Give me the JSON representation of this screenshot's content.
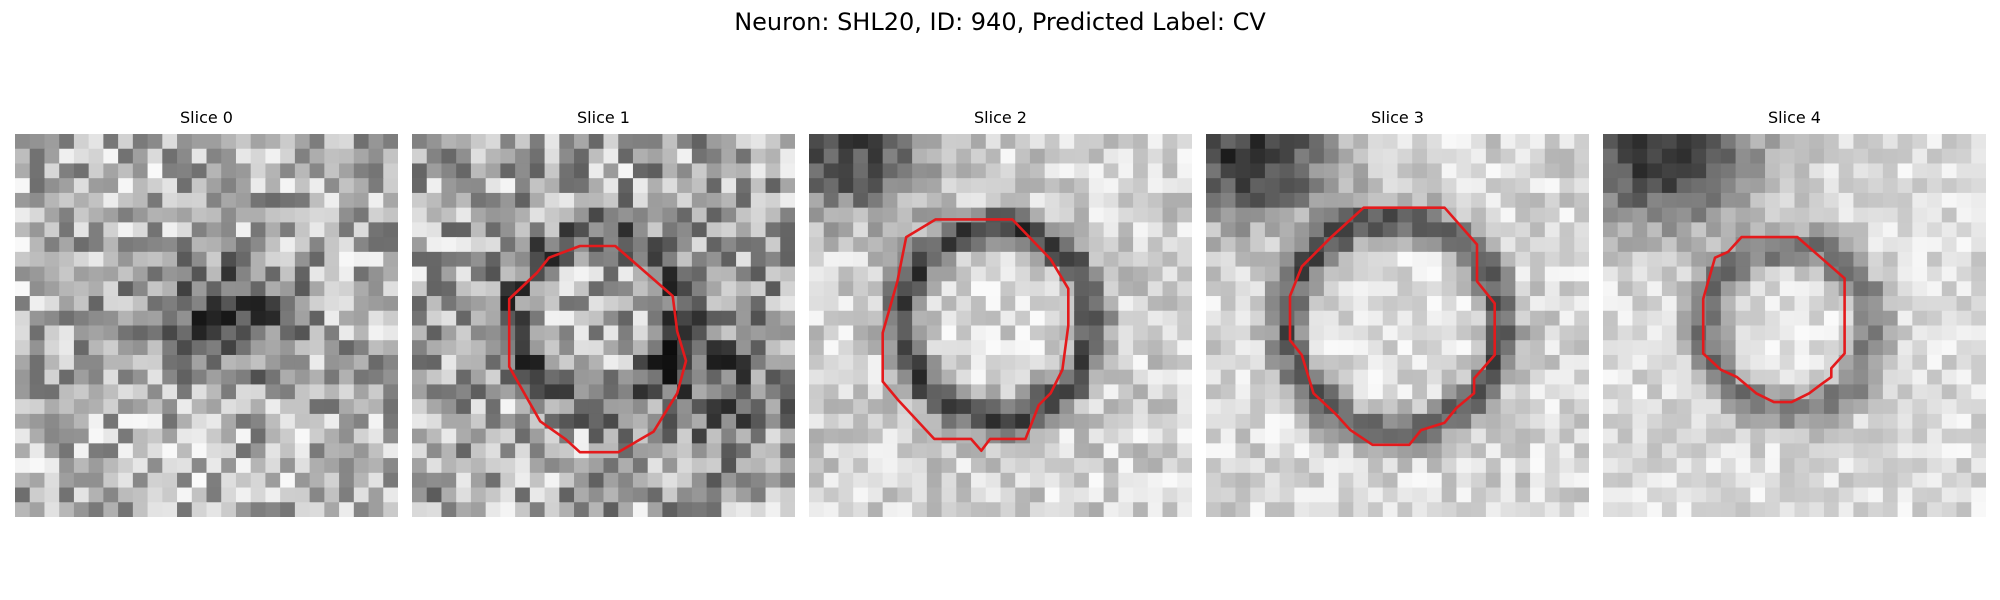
{
  "figure": {
    "title": "Neuron: SHL20, ID: 940, Predicted Label: CV"
  },
  "panels": [
    {
      "title": "Slice 0",
      "has_outline": false,
      "noise_seed": 11
    },
    {
      "title": "Slice 1",
      "has_outline": true,
      "noise_seed": 23
    },
    {
      "title": "Slice 2",
      "has_outline": true,
      "noise_seed": 37
    },
    {
      "title": "Slice 3",
      "has_outline": true,
      "noise_seed": 41
    },
    {
      "title": "Slice 4",
      "has_outline": true,
      "noise_seed": 53
    }
  ],
  "colors": {
    "outline": "#e41a1c",
    "background": "#ffffff"
  }
}
